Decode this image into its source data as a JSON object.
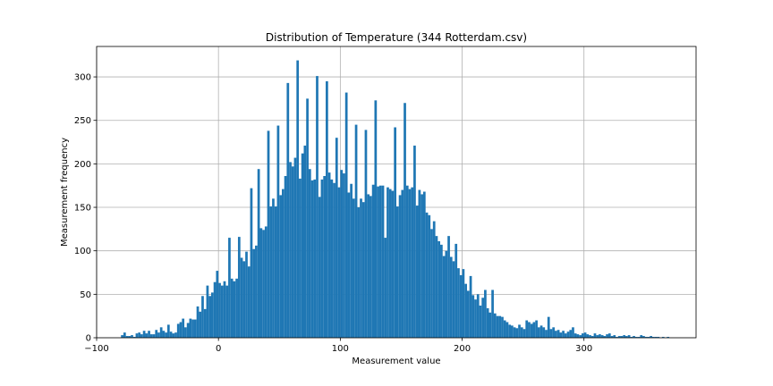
{
  "chart_data": {
    "type": "bar",
    "title": "Distribution of Temperature (344 Rotterdam.csv)",
    "xlabel": "Measurement value",
    "ylabel": "Measurement frequency",
    "xlim": [
      -100,
      392
    ],
    "ylim": [
      0,
      335
    ],
    "xticks": [
      -100,
      0,
      100,
      200,
      300
    ],
    "yticks": [
      0,
      50,
      100,
      150,
      200,
      250,
      300
    ],
    "grid": true,
    "bar_color": "#1f77b4",
    "bin_width": 2,
    "bins": [
      {
        "x": -80,
        "v": 3
      },
      {
        "x": -78,
        "v": 6
      },
      {
        "x": -76,
        "v": 2
      },
      {
        "x": -74,
        "v": 2
      },
      {
        "x": -72,
        "v": 3
      },
      {
        "x": -70,
        "v": 1
      },
      {
        "x": -68,
        "v": 5
      },
      {
        "x": -66,
        "v": 6
      },
      {
        "x": -64,
        "v": 4
      },
      {
        "x": -62,
        "v": 8
      },
      {
        "x": -60,
        "v": 5
      },
      {
        "x": -58,
        "v": 8
      },
      {
        "x": -56,
        "v": 4
      },
      {
        "x": -54,
        "v": 4
      },
      {
        "x": -52,
        "v": 9
      },
      {
        "x": -50,
        "v": 6
      },
      {
        "x": -48,
        "v": 12
      },
      {
        "x": -46,
        "v": 8
      },
      {
        "x": -44,
        "v": 6
      },
      {
        "x": -42,
        "v": 15
      },
      {
        "x": -40,
        "v": 7
      },
      {
        "x": -38,
        "v": 5
      },
      {
        "x": -36,
        "v": 6
      },
      {
        "x": -34,
        "v": 16
      },
      {
        "x": -32,
        "v": 18
      },
      {
        "x": -30,
        "v": 22
      },
      {
        "x": -28,
        "v": 12
      },
      {
        "x": -26,
        "v": 17
      },
      {
        "x": -24,
        "v": 22
      },
      {
        "x": -22,
        "v": 21
      },
      {
        "x": -20,
        "v": 21
      },
      {
        "x": -18,
        "v": 36
      },
      {
        "x": -16,
        "v": 30
      },
      {
        "x": -14,
        "v": 48
      },
      {
        "x": -12,
        "v": 33
      },
      {
        "x": -10,
        "v": 60
      },
      {
        "x": -8,
        "v": 48
      },
      {
        "x": -6,
        "v": 52
      },
      {
        "x": -4,
        "v": 64
      },
      {
        "x": -2,
        "v": 77
      },
      {
        "x": 0,
        "v": 63
      },
      {
        "x": 2,
        "v": 60
      },
      {
        "x": 4,
        "v": 65
      },
      {
        "x": 6,
        "v": 60
      },
      {
        "x": 8,
        "v": 115
      },
      {
        "x": 10,
        "v": 68
      },
      {
        "x": 12,
        "v": 65
      },
      {
        "x": 14,
        "v": 68
      },
      {
        "x": 16,
        "v": 116
      },
      {
        "x": 18,
        "v": 92
      },
      {
        "x": 20,
        "v": 88
      },
      {
        "x": 22,
        "v": 99
      },
      {
        "x": 24,
        "v": 82
      },
      {
        "x": 26,
        "v": 172
      },
      {
        "x": 28,
        "v": 102
      },
      {
        "x": 30,
        "v": 106
      },
      {
        "x": 32,
        "v": 194
      },
      {
        "x": 34,
        "v": 126
      },
      {
        "x": 36,
        "v": 124
      },
      {
        "x": 38,
        "v": 128
      },
      {
        "x": 40,
        "v": 238
      },
      {
        "x": 42,
        "v": 151
      },
      {
        "x": 44,
        "v": 160
      },
      {
        "x": 46,
        "v": 151
      },
      {
        "x": 48,
        "v": 244
      },
      {
        "x": 50,
        "v": 164
      },
      {
        "x": 52,
        "v": 171
      },
      {
        "x": 54,
        "v": 186
      },
      {
        "x": 56,
        "v": 293
      },
      {
        "x": 58,
        "v": 202
      },
      {
        "x": 60,
        "v": 197
      },
      {
        "x": 62,
        "v": 207
      },
      {
        "x": 64,
        "v": 319
      },
      {
        "x": 66,
        "v": 183
      },
      {
        "x": 68,
        "v": 212
      },
      {
        "x": 70,
        "v": 221
      },
      {
        "x": 72,
        "v": 275
      },
      {
        "x": 74,
        "v": 194
      },
      {
        "x": 76,
        "v": 181
      },
      {
        "x": 78,
        "v": 182
      },
      {
        "x": 80,
        "v": 301
      },
      {
        "x": 82,
        "v": 162
      },
      {
        "x": 84,
        "v": 182
      },
      {
        "x": 86,
        "v": 186
      },
      {
        "x": 88,
        "v": 295
      },
      {
        "x": 90,
        "v": 190
      },
      {
        "x": 92,
        "v": 182
      },
      {
        "x": 94,
        "v": 178
      },
      {
        "x": 96,
        "v": 230
      },
      {
        "x": 98,
        "v": 173
      },
      {
        "x": 100,
        "v": 193
      },
      {
        "x": 102,
        "v": 189
      },
      {
        "x": 104,
        "v": 282
      },
      {
        "x": 106,
        "v": 167
      },
      {
        "x": 108,
        "v": 177
      },
      {
        "x": 110,
        "v": 160
      },
      {
        "x": 112,
        "v": 245
      },
      {
        "x": 114,
        "v": 150
      },
      {
        "x": 116,
        "v": 160
      },
      {
        "x": 118,
        "v": 156
      },
      {
        "x": 120,
        "v": 239
      },
      {
        "x": 122,
        "v": 165
      },
      {
        "x": 124,
        "v": 163
      },
      {
        "x": 126,
        "v": 176
      },
      {
        "x": 128,
        "v": 273
      },
      {
        "x": 130,
        "v": 174
      },
      {
        "x": 132,
        "v": 175
      },
      {
        "x": 134,
        "v": 175
      },
      {
        "x": 136,
        "v": 115
      },
      {
        "x": 138,
        "v": 173
      },
      {
        "x": 140,
        "v": 171
      },
      {
        "x": 142,
        "v": 169
      },
      {
        "x": 144,
        "v": 242
      },
      {
        "x": 146,
        "v": 151
      },
      {
        "x": 148,
        "v": 164
      },
      {
        "x": 150,
        "v": 170
      },
      {
        "x": 152,
        "v": 270
      },
      {
        "x": 154,
        "v": 175
      },
      {
        "x": 156,
        "v": 171
      },
      {
        "x": 158,
        "v": 173
      },
      {
        "x": 160,
        "v": 221
      },
      {
        "x": 162,
        "v": 152
      },
      {
        "x": 164,
        "v": 170
      },
      {
        "x": 166,
        "v": 165
      },
      {
        "x": 168,
        "v": 168
      },
      {
        "x": 170,
        "v": 144
      },
      {
        "x": 172,
        "v": 141
      },
      {
        "x": 174,
        "v": 125
      },
      {
        "x": 176,
        "v": 134
      },
      {
        "x": 178,
        "v": 117
      },
      {
        "x": 180,
        "v": 111
      },
      {
        "x": 182,
        "v": 107
      },
      {
        "x": 184,
        "v": 94
      },
      {
        "x": 186,
        "v": 100
      },
      {
        "x": 188,
        "v": 117
      },
      {
        "x": 190,
        "v": 93
      },
      {
        "x": 192,
        "v": 88
      },
      {
        "x": 194,
        "v": 108
      },
      {
        "x": 196,
        "v": 80
      },
      {
        "x": 198,
        "v": 72
      },
      {
        "x": 200,
        "v": 79
      },
      {
        "x": 202,
        "v": 62
      },
      {
        "x": 204,
        "v": 54
      },
      {
        "x": 206,
        "v": 71
      },
      {
        "x": 208,
        "v": 49
      },
      {
        "x": 210,
        "v": 44
      },
      {
        "x": 212,
        "v": 50
      },
      {
        "x": 214,
        "v": 37
      },
      {
        "x": 216,
        "v": 46
      },
      {
        "x": 218,
        "v": 55
      },
      {
        "x": 220,
        "v": 34
      },
      {
        "x": 222,
        "v": 29
      },
      {
        "x": 224,
        "v": 55
      },
      {
        "x": 226,
        "v": 28
      },
      {
        "x": 228,
        "v": 25
      },
      {
        "x": 230,
        "v": 25
      },
      {
        "x": 232,
        "v": 24
      },
      {
        "x": 234,
        "v": 20
      },
      {
        "x": 236,
        "v": 18
      },
      {
        "x": 238,
        "v": 15
      },
      {
        "x": 240,
        "v": 14
      },
      {
        "x": 242,
        "v": 12
      },
      {
        "x": 244,
        "v": 11
      },
      {
        "x": 246,
        "v": 15
      },
      {
        "x": 248,
        "v": 12
      },
      {
        "x": 250,
        "v": 10
      },
      {
        "x": 252,
        "v": 20
      },
      {
        "x": 254,
        "v": 18
      },
      {
        "x": 256,
        "v": 16
      },
      {
        "x": 258,
        "v": 18
      },
      {
        "x": 260,
        "v": 20
      },
      {
        "x": 262,
        "v": 12
      },
      {
        "x": 264,
        "v": 14
      },
      {
        "x": 266,
        "v": 12
      },
      {
        "x": 268,
        "v": 9
      },
      {
        "x": 270,
        "v": 24
      },
      {
        "x": 272,
        "v": 10
      },
      {
        "x": 274,
        "v": 12
      },
      {
        "x": 276,
        "v": 8
      },
      {
        "x": 278,
        "v": 9
      },
      {
        "x": 280,
        "v": 6
      },
      {
        "x": 282,
        "v": 8
      },
      {
        "x": 284,
        "v": 5
      },
      {
        "x": 286,
        "v": 7
      },
      {
        "x": 288,
        "v": 9
      },
      {
        "x": 290,
        "v": 12
      },
      {
        "x": 292,
        "v": 5
      },
      {
        "x": 294,
        "v": 4
      },
      {
        "x": 296,
        "v": 3
      },
      {
        "x": 298,
        "v": 5
      },
      {
        "x": 300,
        "v": 6
      },
      {
        "x": 302,
        "v": 4
      },
      {
        "x": 304,
        "v": 3
      },
      {
        "x": 306,
        "v": 2
      },
      {
        "x": 308,
        "v": 5
      },
      {
        "x": 310,
        "v": 3
      },
      {
        "x": 312,
        "v": 4
      },
      {
        "x": 314,
        "v": 3
      },
      {
        "x": 316,
        "v": 2
      },
      {
        "x": 318,
        "v": 4
      },
      {
        "x": 320,
        "v": 5
      },
      {
        "x": 322,
        "v": 2
      },
      {
        "x": 324,
        "v": 3
      },
      {
        "x": 326,
        "v": 1
      },
      {
        "x": 328,
        "v": 2
      },
      {
        "x": 330,
        "v": 2
      },
      {
        "x": 332,
        "v": 3
      },
      {
        "x": 334,
        "v": 2
      },
      {
        "x": 336,
        "v": 3
      },
      {
        "x": 338,
        "v": 1
      },
      {
        "x": 340,
        "v": 2
      },
      {
        "x": 342,
        "v": 1
      },
      {
        "x": 344,
        "v": 1
      },
      {
        "x": 346,
        "v": 3
      },
      {
        "x": 348,
        "v": 2
      },
      {
        "x": 350,
        "v": 1
      },
      {
        "x": 352,
        "v": 1
      },
      {
        "x": 354,
        "v": 2
      },
      {
        "x": 356,
        "v": 1
      },
      {
        "x": 358,
        "v": 1
      },
      {
        "x": 360,
        "v": 1
      },
      {
        "x": 362,
        "v": 0
      },
      {
        "x": 364,
        "v": 1
      },
      {
        "x": 366,
        "v": 0
      },
      {
        "x": 368,
        "v": 1
      }
    ]
  }
}
